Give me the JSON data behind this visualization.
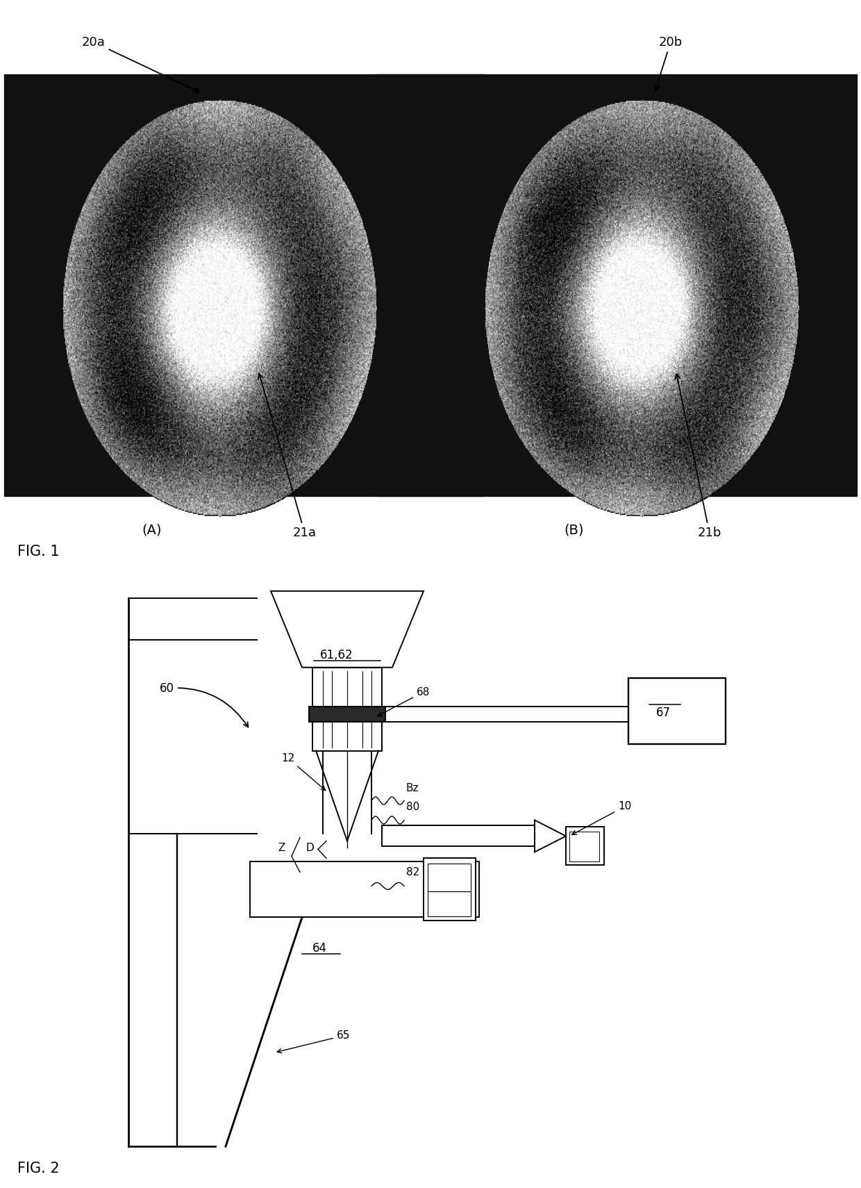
{
  "fig_width": 12.4,
  "fig_height": 17.1,
  "bg_color": "#ffffff",
  "fig1_label": "FIG. 1",
  "fig2_label": "FIG. 2",
  "label_20a": "20a",
  "label_20b": "20b",
  "label_21a": "21a",
  "label_21b": "21b",
  "label_A": "(A)",
  "label_B": "(B)",
  "label_60": "60",
  "label_61_62": "61,62",
  "label_64": "64",
  "label_65": "65",
  "label_67": "67",
  "label_68": "68",
  "label_12": "12",
  "label_10": "10",
  "label_80": "80",
  "label_82": "82",
  "label_Bz": "Bz",
  "label_Z": "Z",
  "label_D": "D"
}
